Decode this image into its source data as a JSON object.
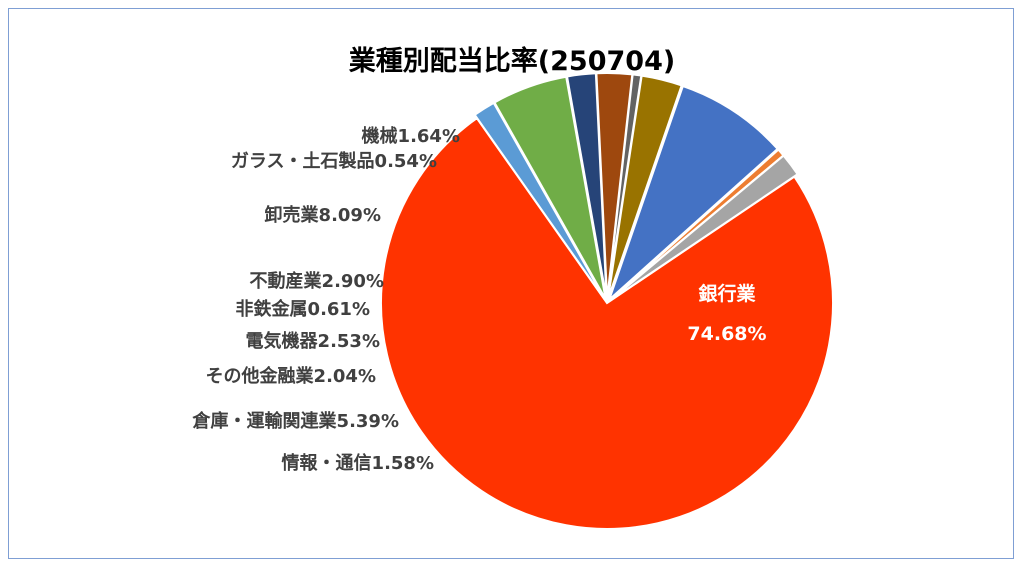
{
  "chart_data": {
    "type": "pie",
    "title": "業種別配当比率(250704)",
    "slices": [
      {
        "label": "銀行業",
        "value": 74.68,
        "value_text": "74.68%",
        "color": "#ff3300"
      },
      {
        "label": "情報・通信",
        "value": 1.58,
        "value_text": "1.58%",
        "color": "#5b9bd5"
      },
      {
        "label": "倉庫・運輸関連業",
        "value": 5.39,
        "value_text": "5.39%",
        "color": "#70ad47"
      },
      {
        "label": "その他金融業",
        "value": 2.04,
        "value_text": "2.04%",
        "color": "#264478"
      },
      {
        "label": "電気機器",
        "value": 2.53,
        "value_text": "2.53%",
        "color": "#9e480e"
      },
      {
        "label": "非鉄金属",
        "value": 0.61,
        "value_text": "0.61%",
        "color": "#636363"
      },
      {
        "label": "不動産業",
        "value": 2.9,
        "value_text": "2.90%",
        "color": "#997300"
      },
      {
        "label": "卸売業",
        "value": 8.09,
        "value_text": "8.09%",
        "color": "#4472c4"
      },
      {
        "label": "ガラス・土石製品",
        "value": 0.54,
        "value_text": "0.54%",
        "color": "#ed7d31"
      },
      {
        "label": "機械",
        "value": 1.64,
        "value_text": "1.64%",
        "color": "#a5a5a5"
      }
    ]
  }
}
